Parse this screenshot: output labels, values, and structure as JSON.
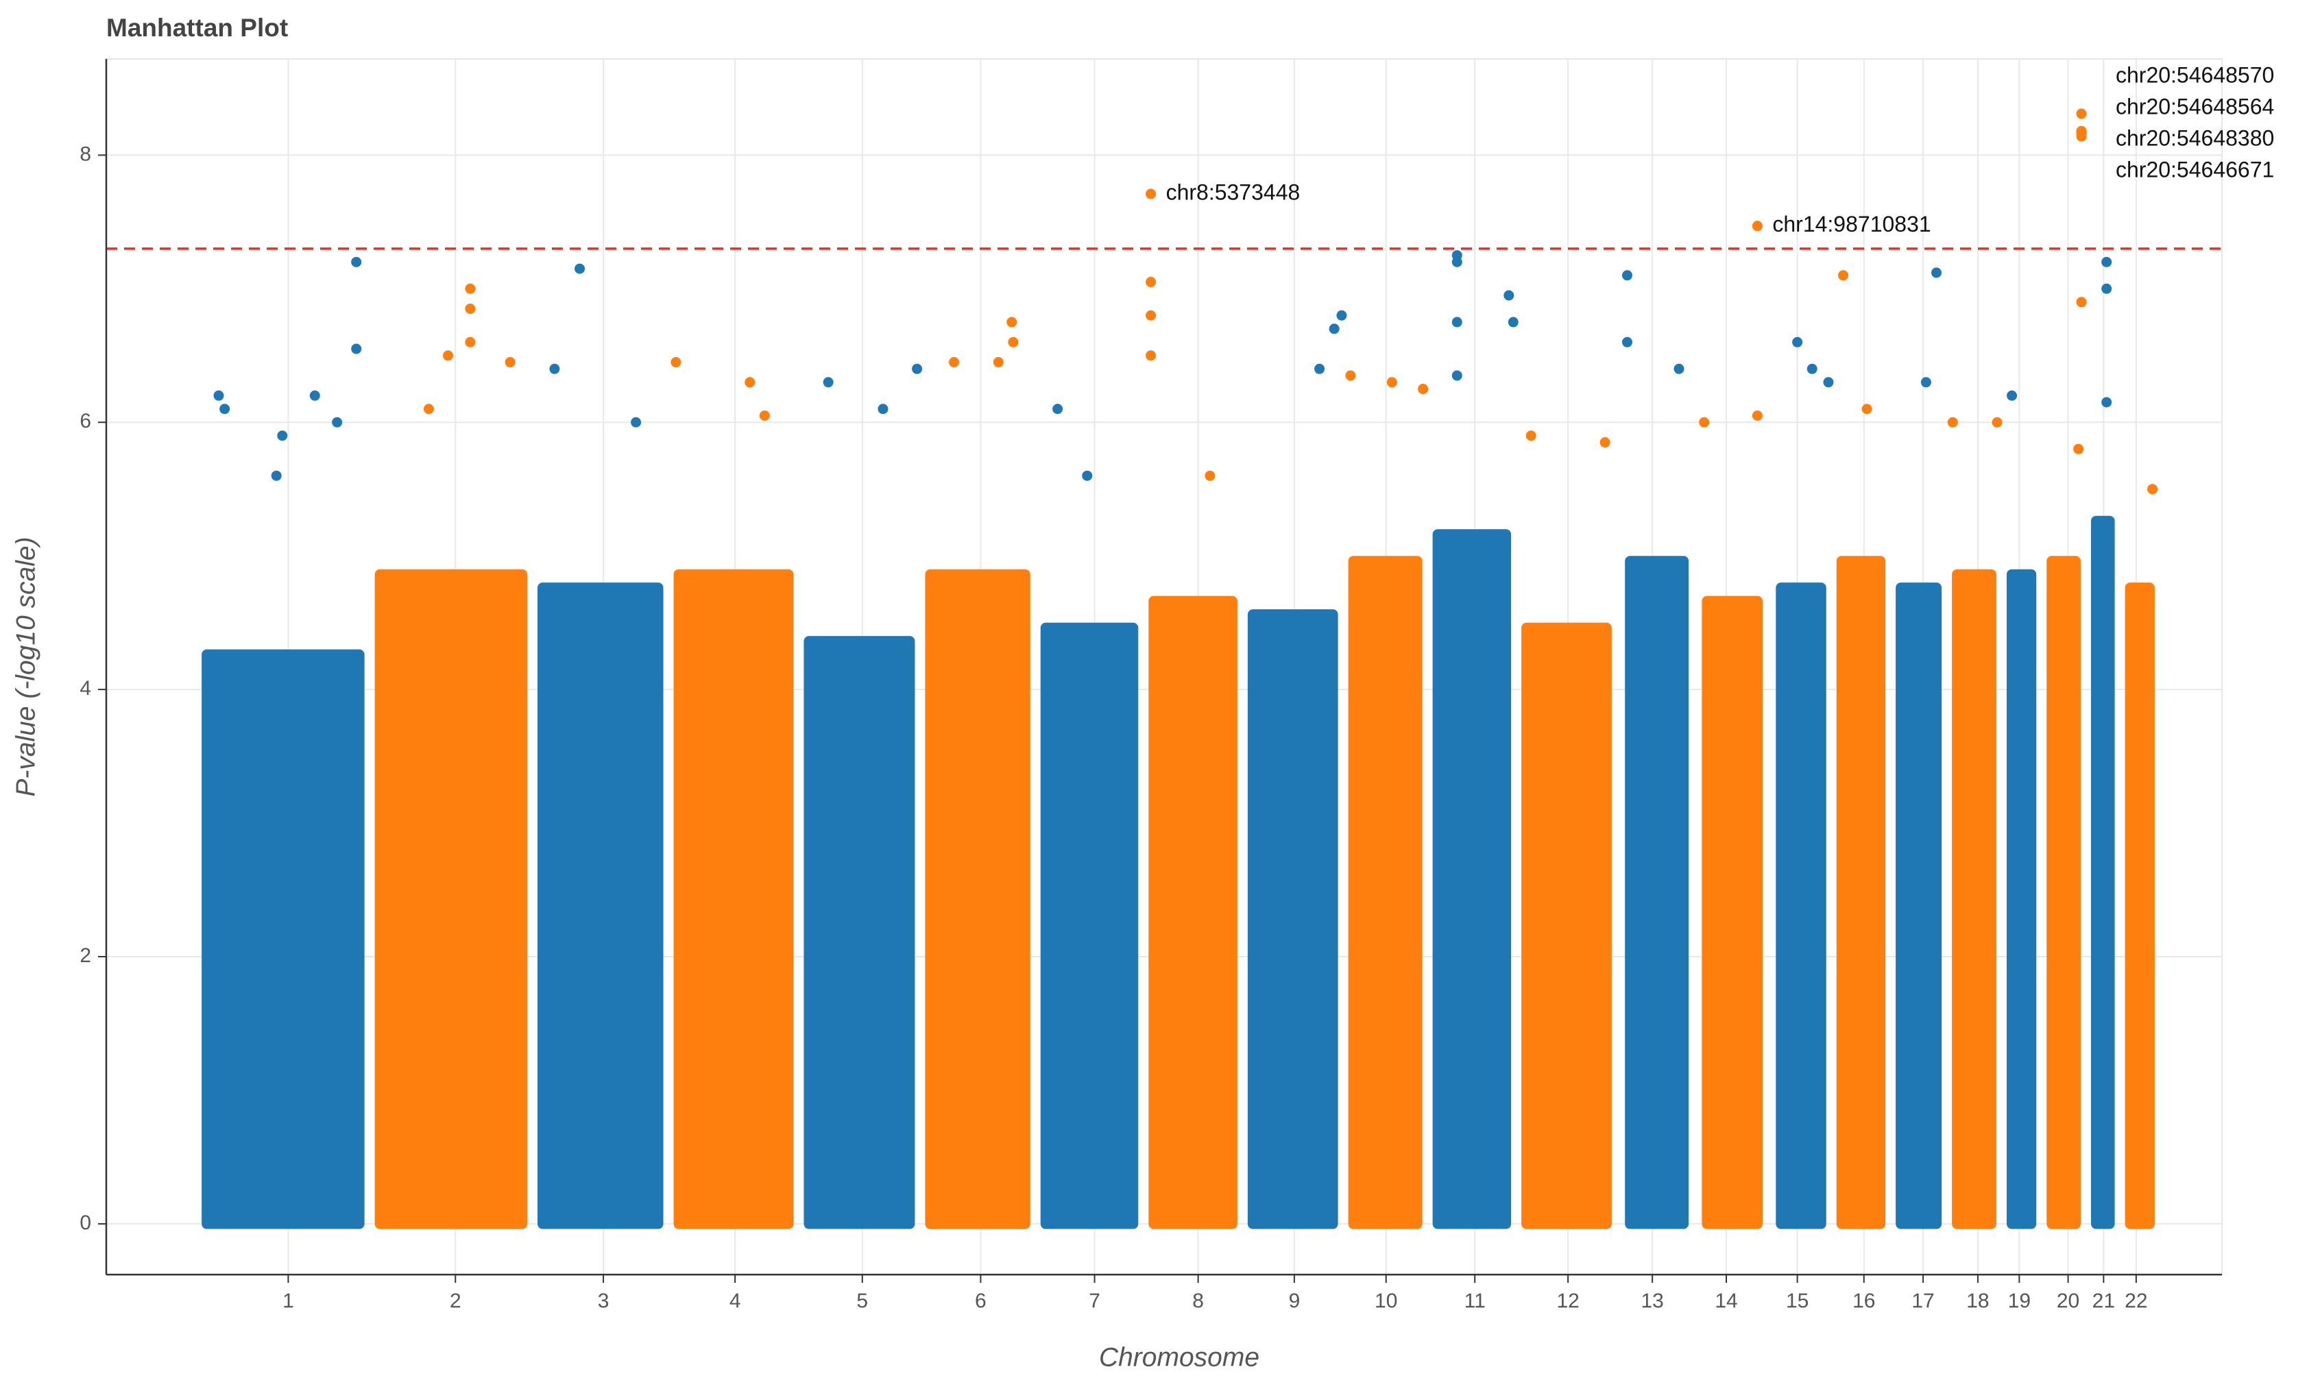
{
  "chart_data": {
    "type": "manhattan",
    "title": "Manhattan Plot",
    "x_label": "Chromosome",
    "y_label": "P-value (-log10 scale)",
    "xlim": [
      72,
      1502
    ],
    "ylim": [
      -0.38,
      8.72
    ],
    "yticks": [
      0,
      2,
      4,
      6,
      8
    ],
    "grid": true,
    "threshold": 7.3,
    "threshold_color": "#e8302a",
    "colors": [
      "#1f77b4",
      "#ff7f0e"
    ],
    "chromosomes": [
      {
        "label": "1",
        "tick": 195,
        "span": [
          133,
          250
        ],
        "band": 4.3,
        "x": [
          148,
          152,
          187,
          191,
          213,
          228,
          241,
          241
        ],
        "values": [
          6.2,
          6.1,
          5.6,
          5.9,
          6.2,
          6.0,
          7.2,
          6.55
        ]
      },
      {
        "label": "2",
        "tick": 308,
        "span": [
          250,
          360
        ],
        "band": 4.9,
        "x": [
          290,
          303,
          318,
          318,
          318,
          345
        ],
        "values": [
          6.1,
          6.5,
          7.0,
          6.85,
          6.6,
          6.45
        ]
      },
      {
        "label": "3",
        "tick": 408,
        "span": [
          360,
          452
        ],
        "band": 4.8,
        "x": [
          375,
          392,
          430
        ],
        "values": [
          6.4,
          7.15,
          6.0
        ]
      },
      {
        "label": "4",
        "tick": 497,
        "span": [
          452,
          540
        ],
        "band": 4.9,
        "x": [
          457,
          507,
          517
        ],
        "values": [
          6.45,
          6.3,
          6.05
        ]
      },
      {
        "label": "5",
        "tick": 583,
        "span": [
          540,
          622
        ],
        "band": 4.4,
        "x": [
          560,
          597,
          620
        ],
        "values": [
          6.3,
          6.1,
          6.4
        ]
      },
      {
        "label": "6",
        "tick": 663,
        "span": [
          622,
          700
        ],
        "band": 4.9,
        "x": [
          645,
          675,
          684,
          685
        ],
        "values": [
          6.45,
          6.45,
          6.75,
          6.6
        ]
      },
      {
        "label": "7",
        "tick": 740,
        "span": [
          700,
          773
        ],
        "band": 4.5,
        "x": [
          715,
          735
        ],
        "values": [
          6.1,
          5.6
        ]
      },
      {
        "label": "8",
        "tick": 810,
        "span": [
          773,
          840
        ],
        "band": 4.7,
        "x": [
          778,
          778,
          778,
          818
        ],
        "values": [
          7.05,
          6.8,
          6.5,
          5.6
        ]
      },
      {
        "label": "9",
        "tick": 875,
        "span": [
          840,
          908
        ],
        "band": 4.6,
        "x": [
          892,
          902,
          907
        ],
        "values": [
          6.4,
          6.7,
          6.8
        ]
      },
      {
        "label": "10",
        "tick": 937,
        "span": [
          908,
          965
        ],
        "band": 5.0,
        "x": [
          913,
          941,
          962
        ],
        "values": [
          6.35,
          6.3,
          6.25
        ]
      },
      {
        "label": "11",
        "tick": 997,
        "span": [
          965,
          1025
        ],
        "band": 5.2,
        "x": [
          985,
          985,
          985,
          985,
          1020,
          1023
        ],
        "values": [
          7.25,
          7.2,
          6.75,
          6.35,
          6.95,
          6.75
        ]
      },
      {
        "label": "12",
        "tick": 1060,
        "span": [
          1025,
          1093
        ],
        "band": 4.5,
        "x": [
          1035,
          1085
        ],
        "values": [
          5.9,
          5.85
        ]
      },
      {
        "label": "13",
        "tick": 1117,
        "span": [
          1095,
          1145
        ],
        "band": 5.0,
        "x": [
          1100,
          1100,
          1135
        ],
        "values": [
          7.1,
          6.6,
          6.4
        ]
      },
      {
        "label": "14",
        "tick": 1167,
        "span": [
          1147,
          1195
        ],
        "band": 4.7,
        "x": [
          1152,
          1188
        ],
        "values": [
          6.0,
          6.05
        ]
      },
      {
        "label": "15",
        "tick": 1215,
        "span": [
          1197,
          1238
        ],
        "band": 4.8,
        "x": [
          1215,
          1225,
          1236
        ],
        "values": [
          6.6,
          6.4,
          6.3
        ]
      },
      {
        "label": "16",
        "tick": 1260,
        "span": [
          1238,
          1278
        ],
        "band": 5.0,
        "x": [
          1246,
          1262
        ],
        "values": [
          7.1,
          6.1
        ]
      },
      {
        "label": "17",
        "tick": 1300,
        "span": [
          1278,
          1316
        ],
        "band": 4.8,
        "x": [
          1302,
          1309
        ],
        "values": [
          6.3,
          7.12
        ]
      },
      {
        "label": "18",
        "tick": 1337,
        "span": [
          1316,
          1353
        ],
        "band": 4.9,
        "x": [
          1320,
          1350
        ],
        "values": [
          6.0,
          6.0
        ]
      },
      {
        "label": "19",
        "tick": 1365,
        "span": [
          1353,
          1380
        ],
        "band": 4.9,
        "x": [
          1360
        ],
        "values": [
          6.2
        ]
      },
      {
        "label": "20",
        "tick": 1398,
        "span": [
          1380,
          1410
        ],
        "band": 5.0,
        "x": [
          1405,
          1407
        ],
        "values": [
          5.8,
          6.9
        ]
      },
      {
        "label": "21",
        "tick": 1422,
        "span": [
          1410,
          1433
        ],
        "band": 5.3,
        "x": [
          1424,
          1424,
          1424
        ],
        "values": [
          7.2,
          7.0,
          6.15
        ]
      },
      {
        "label": "22",
        "tick": 1444,
        "span": [
          1433,
          1460
        ],
        "band": 4.8,
        "x": [
          1455
        ],
        "values": [
          5.5
        ]
      }
    ],
    "annotations": [
      {
        "text": "chr8:5373448",
        "x": 778,
        "y": 7.71,
        "color": "#ff7f0e"
      },
      {
        "text": "chr14:98710831",
        "x": 1188,
        "y": 7.47,
        "color": "#ff7f0e"
      },
      {
        "text": "chr20:54648570",
        "x": 1407,
        "y": 8.31,
        "color": "#ff7f0e"
      },
      {
        "text": "chr20:54648564",
        "x": 1407,
        "y": 8.18,
        "color": "#ff7f0e"
      },
      {
        "text": "chr20:54648380",
        "x": 1407,
        "y": 8.16,
        "color": "#ff7f0e"
      },
      {
        "text": "chr20:54646671",
        "x": 1407,
        "y": 8.14,
        "color": "#ff7f0e"
      }
    ]
  }
}
